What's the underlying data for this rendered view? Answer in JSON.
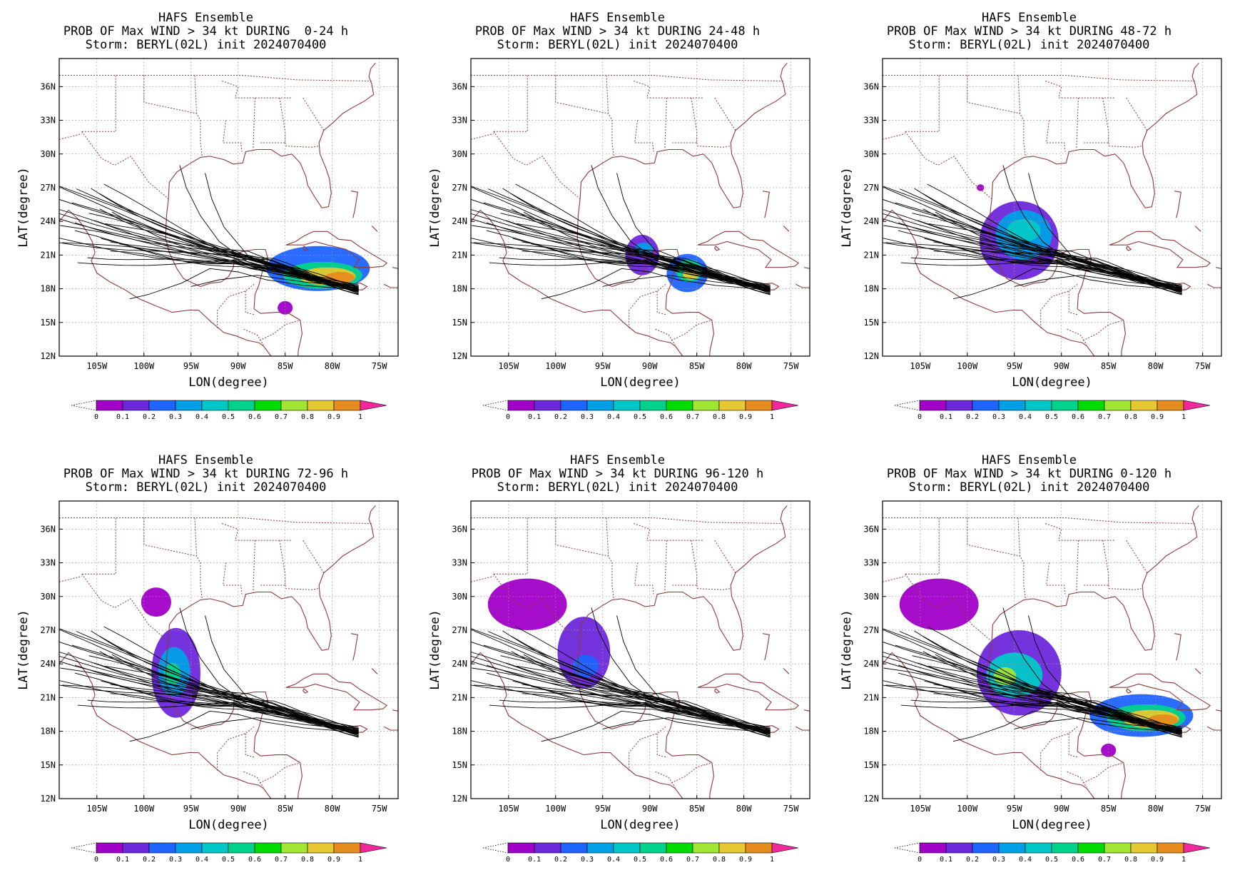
{
  "figure": {
    "model": "HAFS Ensemble",
    "storm_line": "Storm: BERYL(02L) init 2024070400",
    "xlabel": "LON(degree)",
    "ylabel": "LAT(degree)",
    "lon_ticks": [
      {
        "lon": -105,
        "label": "105W"
      },
      {
        "lon": -100,
        "label": "100W"
      },
      {
        "lon": -95,
        "label": "95W"
      },
      {
        "lon": -90,
        "label": "90W"
      },
      {
        "lon": -85,
        "label": "85W"
      },
      {
        "lon": -80,
        "label": "80W"
      },
      {
        "lon": -75,
        "label": "75W"
      }
    ],
    "lat_ticks": [
      {
        "lat": 12,
        "label": "12N"
      },
      {
        "lat": 15,
        "label": "15N"
      },
      {
        "lat": 18,
        "label": "18N"
      },
      {
        "lat": 21,
        "label": "21N"
      },
      {
        "lat": 24,
        "label": "24N"
      },
      {
        "lat": 27,
        "label": "27N"
      },
      {
        "lat": 30,
        "label": "30N"
      },
      {
        "lat": 33,
        "label": "33N"
      },
      {
        "lat": 36,
        "label": "36N"
      }
    ],
    "lon_range": [
      -109,
      -73
    ],
    "lat_range": [
      12,
      38.5
    ],
    "colorbar": {
      "labels": [
        "0",
        "0.1",
        "0.2",
        "0.3",
        "0.4",
        "0.5",
        "0.6",
        "0.7",
        "0.8",
        "0.9",
        "1"
      ],
      "colors": [
        "#a000c8",
        "#6e28dc",
        "#1e64ff",
        "#00a0e6",
        "#00c8c8",
        "#00d28c",
        "#00dc00",
        "#a0e632",
        "#e6c832",
        "#e68c1e",
        "#f03c28"
      ],
      "over_color": "#f0289b",
      "under": "dotted"
    },
    "colors": {
      "coast": "#8b3a3a",
      "track": "#000000",
      "grid": "#9a9a9a"
    }
  },
  "panels": [
    {
      "line1": "HAFS Ensemble",
      "line2": "PROB OF Max WIND > 34 kt DURING  0-24 h",
      "line3": "Storm: BERYL(02L) init 2024070400"
    },
    {
      "line1": "HAFS Ensemble",
      "line2": "PROB OF Max WIND > 34 kt DURING 24-48 h",
      "line3": "Storm: BERYL(02L) init 2024070400"
    },
    {
      "line1": "HAFS Ensemble",
      "line2": "PROB OF Max WIND > 34 kt DURING 48-72 h",
      "line3": "Storm: BERYL(02L) init 2024070400"
    },
    {
      "line1": "HAFS Ensemble",
      "line2": "PROB OF Max WIND > 34 kt DURING 72-96 h",
      "line3": "Storm: BERYL(02L) init 2024070400"
    },
    {
      "line1": "HAFS Ensemble",
      "line2": "PROB OF Max WIND > 34 kt DURING 96-120 h",
      "line3": "Storm: BERYL(02L) init 2024070400"
    },
    {
      "line1": "HAFS Ensemble",
      "line2": "PROB OF Max WIND > 34 kt DURING 0-120 h",
      "line3": "Storm: BERYL(02L) init 2024070400"
    }
  ],
  "chart_data": [
    {
      "type": "heatmap",
      "period": "0-24 h",
      "prob_regions": [
        {
          "lon": -81.5,
          "lat": 19.8,
          "rx": 5.5,
          "ry": 2.0,
          "p": 0.25
        },
        {
          "lon": -81.0,
          "lat": 19.2,
          "rx": 4.2,
          "ry": 1.2,
          "p": 0.5
        },
        {
          "lon": -80.5,
          "lat": 19.1,
          "rx": 3.0,
          "ry": 0.8,
          "p": 0.85
        },
        {
          "lon": -79.2,
          "lat": 19.0,
          "rx": 1.6,
          "ry": 0.5,
          "p": 0.95
        },
        {
          "lon": -85.0,
          "lat": 16.3,
          "rx": 0.8,
          "ry": 0.6,
          "p": 0.05
        }
      ]
    },
    {
      "type": "heatmap",
      "period": "24-48 h",
      "prob_regions": [
        {
          "lon": -90.8,
          "lat": 21.0,
          "rx": 1.8,
          "ry": 1.8,
          "p": 0.15
        },
        {
          "lon": -90.6,
          "lat": 21.6,
          "rx": 1.0,
          "ry": 0.5,
          "p": 0.35
        },
        {
          "lon": -86.0,
          "lat": 19.4,
          "rx": 2.2,
          "ry": 1.7,
          "p": 0.2
        },
        {
          "lon": -85.8,
          "lat": 19.6,
          "rx": 1.4,
          "ry": 1.0,
          "p": 0.5
        },
        {
          "lon": -85.6,
          "lat": 19.3,
          "rx": 0.9,
          "ry": 0.5,
          "p": 0.85
        }
      ]
    },
    {
      "type": "heatmap",
      "period": "48-72 h",
      "prob_regions": [
        {
          "lon": -94.5,
          "lat": 22.3,
          "rx": 4.2,
          "ry": 3.5,
          "p": 0.1
        },
        {
          "lon": -94.0,
          "lat": 22.8,
          "rx": 3.0,
          "ry": 2.2,
          "p": 0.3
        },
        {
          "lon": -94.0,
          "lat": 23.2,
          "rx": 1.8,
          "ry": 1.0,
          "p": 0.45
        },
        {
          "lon": -98.6,
          "lat": 27.0,
          "rx": 0.4,
          "ry": 0.3,
          "p": 0.05
        }
      ]
    },
    {
      "type": "heatmap",
      "period": "72-96 h",
      "prob_regions": [
        {
          "lon": -96.6,
          "lat": 23.2,
          "rx": 2.6,
          "ry": 4.0,
          "p": 0.1
        },
        {
          "lon": -96.8,
          "lat": 23.3,
          "rx": 1.7,
          "ry": 2.2,
          "p": 0.3
        },
        {
          "lon": -97.0,
          "lat": 23.1,
          "rx": 0.9,
          "ry": 1.0,
          "p": 0.55
        },
        {
          "lon": -98.7,
          "lat": 29.5,
          "rx": 1.6,
          "ry": 1.3,
          "p": 0.05
        }
      ]
    },
    {
      "type": "heatmap",
      "period": "96-120 h",
      "prob_regions": [
        {
          "lon": -103.0,
          "lat": 29.3,
          "rx": 4.2,
          "ry": 2.3,
          "p": 0.05
        },
        {
          "lon": -97.0,
          "lat": 25.0,
          "rx": 2.8,
          "ry": 3.2,
          "p": 0.1
        },
        {
          "lon": -96.8,
          "lat": 23.8,
          "rx": 1.4,
          "ry": 1.0,
          "p": 0.2
        }
      ]
    },
    {
      "type": "heatmap",
      "period": "0-120 h",
      "prob_regions": [
        {
          "lon": -103.0,
          "lat": 29.3,
          "rx": 4.2,
          "ry": 2.3,
          "p": 0.05
        },
        {
          "lon": -94.5,
          "lat": 23.2,
          "rx": 4.5,
          "ry": 3.8,
          "p": 0.1
        },
        {
          "lon": -95.0,
          "lat": 23.0,
          "rx": 3.0,
          "ry": 2.0,
          "p": 0.4
        },
        {
          "lon": -96.0,
          "lat": 22.9,
          "rx": 1.2,
          "ry": 0.8,
          "p": 0.7
        },
        {
          "lon": -81.5,
          "lat": 19.4,
          "rx": 5.5,
          "ry": 1.9,
          "p": 0.25
        },
        {
          "lon": -81.0,
          "lat": 19.2,
          "rx": 4.2,
          "ry": 1.2,
          "p": 0.5
        },
        {
          "lon": -80.5,
          "lat": 19.1,
          "rx": 3.0,
          "ry": 0.8,
          "p": 0.85
        },
        {
          "lon": -79.2,
          "lat": 19.0,
          "rx": 1.6,
          "ry": 0.5,
          "p": 0.95
        },
        {
          "lon": -85.0,
          "lat": 16.3,
          "rx": 0.8,
          "ry": 0.6,
          "p": 0.05
        }
      ]
    }
  ]
}
